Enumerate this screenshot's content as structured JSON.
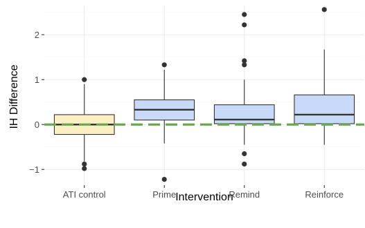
{
  "chart_data": {
    "type": "box",
    "title": "",
    "xlabel": "Intervention",
    "ylabel": "IH Difference",
    "ylim": [
      -1.35,
      2.65
    ],
    "yticks": [
      -1,
      0,
      1,
      2
    ],
    "ytick_labels": [
      "−1",
      "0",
      "1",
      "2"
    ],
    "grid": true,
    "reference_line": {
      "y": 0,
      "color": "#6aa84f",
      "style": "dashed"
    },
    "categories": [
      "ATI control",
      "Prime",
      "Remind",
      "Reinforce"
    ],
    "boxes": [
      {
        "category": "ATI control",
        "q1": -0.22,
        "median": 0.0,
        "q3": 0.22,
        "whisker_low": -0.82,
        "whisker_high": 0.9,
        "outliers": [
          1.0,
          -0.88,
          -0.98
        ],
        "fill": "#fbefc3"
      },
      {
        "category": "Prime",
        "q1": 0.1,
        "median": 0.33,
        "q3": 0.55,
        "whisker_low": -0.42,
        "whisker_high": 1.22,
        "outliers": [
          1.33,
          -1.22
        ],
        "fill": "#c9daf8"
      },
      {
        "category": "Remind",
        "q1": 0.02,
        "median": 0.11,
        "q3": 0.44,
        "whisker_low": -0.45,
        "whisker_high": 1.0,
        "outliers": [
          2.45,
          2.22,
          1.42,
          1.33,
          -0.65,
          -0.88
        ],
        "fill": "#c9daf8"
      },
      {
        "category": "Reinforce",
        "q1": 0.02,
        "median": 0.22,
        "q3": 0.66,
        "whisker_low": -0.45,
        "whisker_high": 1.67,
        "outliers": [
          2.56
        ],
        "fill": "#c9daf8"
      }
    ]
  }
}
